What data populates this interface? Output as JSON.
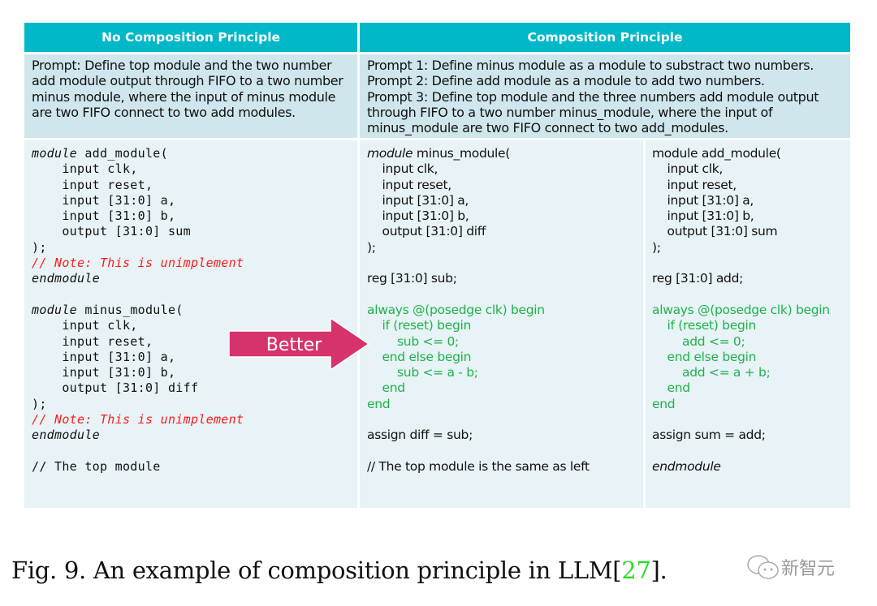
{
  "headers": [
    "No Composition Principle",
    "Composition Principle"
  ],
  "prompts": {
    "left": [
      "Prompt: Define top module and the two number",
      "add module output through FIFO to a two number",
      "minus module, where the input of minus module",
      "are two FIFO connect to two add modules."
    ],
    "right": [
      "Prompt 1: Define minus module as a module to substract two numbers.",
      "Prompt 2: Define add module as a module to add two numbers.",
      "Prompt 3: Define top module and the three numbers add module output",
      "through FIFO to a two number minus_module, where the input of",
      "minus_module are two FIFO connect to two add_modules."
    ]
  },
  "code_left": [
    {
      "k": "module",
      "t": " add_module("
    },
    {
      "t": "    input clk,"
    },
    {
      "t": "    input reset,"
    },
    {
      "t": "    input [31:0] a,"
    },
    {
      "t": "    input [31:0] b,"
    },
    {
      "t": "    output [31:0] sum"
    },
    {
      "t": ");"
    },
    {
      "c": "// Note: This is unimplement"
    },
    {
      "k": "endmodule"
    },
    {
      "t": ""
    },
    {
      "k": "module",
      "t": " minus_module("
    },
    {
      "t": "    input clk,"
    },
    {
      "t": "    input reset,"
    },
    {
      "t": "    input [31:0] a,"
    },
    {
      "t": "    input [31:0] b,"
    },
    {
      "t": "    output [31:0] diff"
    },
    {
      "t": ");"
    },
    {
      "c": "// Note: This is unimplement"
    },
    {
      "k": "endmodule"
    },
    {
      "t": ""
    },
    {
      "t": "// The top module"
    }
  ],
  "code_mid": [
    {
      "k": "module",
      "t": " minus_module("
    },
    {
      "t": "    input clk,"
    },
    {
      "t": "    input reset,"
    },
    {
      "t": "    input [31:0] a,"
    },
    {
      "t": "    input [31:0] b,"
    },
    {
      "t": "    output [31:0] diff"
    },
    {
      "t": ");"
    },
    {
      "t": ""
    },
    {
      "t": "reg [31:0] sub;"
    },
    {
      "t": ""
    },
    {
      "g": "always @(posedge clk) begin"
    },
    {
      "g": "    if (reset) begin"
    },
    {
      "g": "        sub <= 0;"
    },
    {
      "g": "    end else begin"
    },
    {
      "g": "        sub <= a - b;"
    },
    {
      "g": "    end"
    },
    {
      "g": "end"
    },
    {
      "t": ""
    },
    {
      "t": "assign diff = sub;"
    },
    {
      "t": ""
    },
    {
      "t": "// The top module is the same as left"
    }
  ],
  "code_right": [
    {
      "t": "module add_module("
    },
    {
      "t": "    input clk,"
    },
    {
      "t": "    input reset,"
    },
    {
      "t": "    input [31:0] a,"
    },
    {
      "t": "    input [31:0] b,"
    },
    {
      "t": "    output [31:0] sum"
    },
    {
      "t": ");"
    },
    {
      "t": ""
    },
    {
      "t": "reg [31:0] add;"
    },
    {
      "t": ""
    },
    {
      "g": "always @(posedge clk) begin"
    },
    {
      "g": "    if (reset) begin"
    },
    {
      "g": "        add <= 0;"
    },
    {
      "g": "    end else begin"
    },
    {
      "g": "        add <= a + b;"
    },
    {
      "g": "    end"
    },
    {
      "g": "end"
    },
    {
      "t": ""
    },
    {
      "t": "assign sum = add;"
    },
    {
      "t": ""
    },
    {
      "k": "endmodule"
    }
  ],
  "arrow_label": "Better",
  "caption": {
    "prefix": "Fig. 9.   An example of composition principle in LLM[",
    "cite": "27",
    "suffix": "]."
  },
  "watermark": "新智元",
  "colors": {
    "header": "#00b8c8",
    "prompt_row": "#cfe6ec",
    "code_row": "#e7f3f6",
    "comment": "#ff1a1a",
    "green_code": "#1fb24a",
    "arrow": "#d6336c",
    "citation": "#22e022"
  }
}
